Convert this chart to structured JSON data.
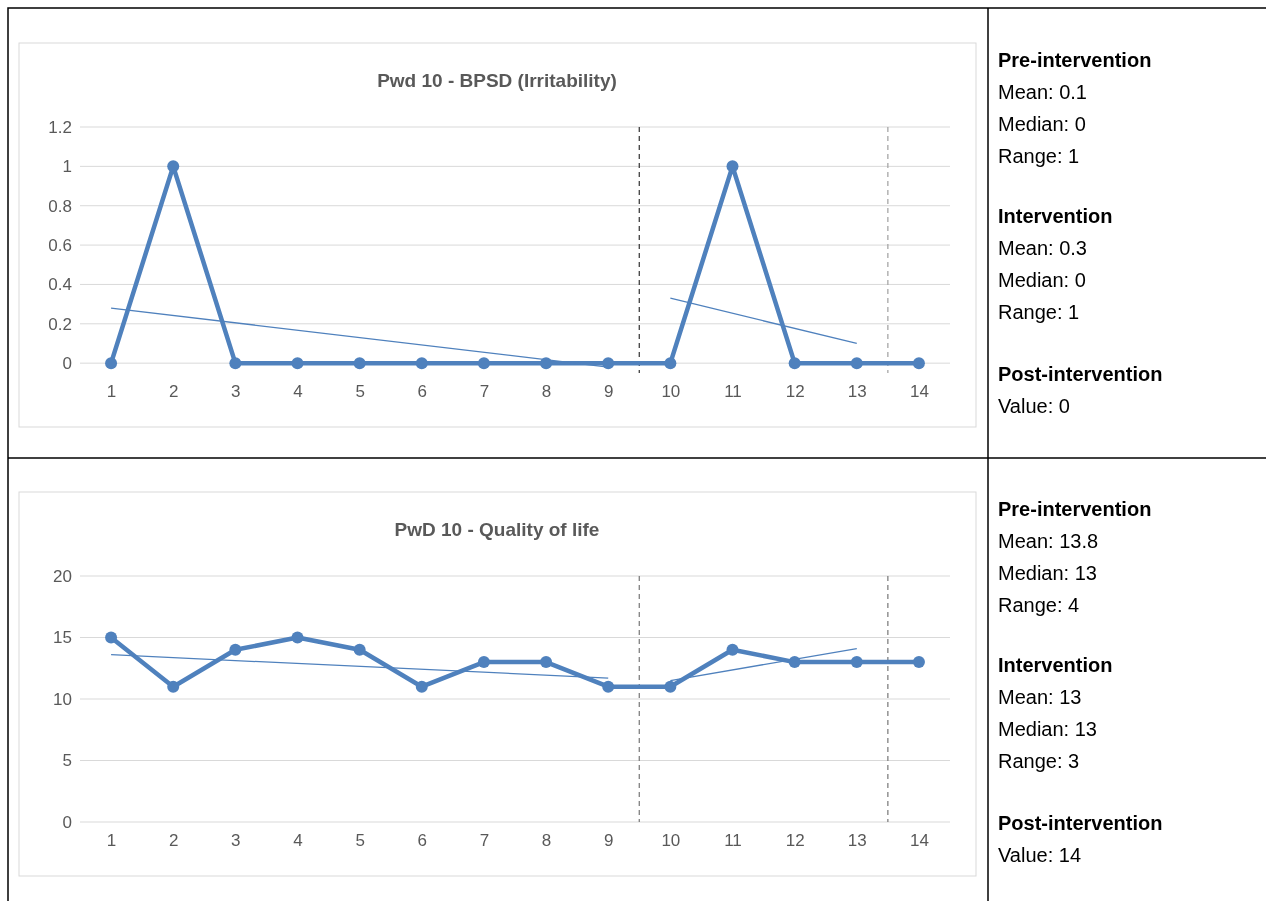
{
  "chart_data": [
    {
      "type": "line",
      "title": "Pwd 10 - BPSD (Irritability)",
      "xlim": [
        0.5,
        14.5
      ],
      "xticks": [
        1,
        2,
        3,
        4,
        5,
        6,
        7,
        8,
        9,
        10,
        11,
        12,
        13,
        14
      ],
      "ylim": [
        -0.05,
        1.2
      ],
      "yticks": [
        0,
        0.2,
        0.4,
        0.6,
        0.8,
        1,
        1.2
      ],
      "grid": "y",
      "marker": "circle",
      "series": [
        {
          "color": "#4f81bd",
          "x": [
            1,
            2,
            3,
            4,
            5,
            6,
            7,
            8,
            9,
            10,
            11,
            12,
            13,
            14
          ],
          "values": [
            0,
            1,
            0,
            0,
            0,
            0,
            0,
            0,
            0,
            0,
            1,
            0,
            0,
            0
          ]
        },
        {
          "color": "#4f81bd",
          "marker": "none",
          "x": [
            1,
            9
          ],
          "values": [
            0.28,
            -0.02
          ]
        },
        {
          "color": "#4f81bd",
          "marker": "none",
          "x": [
            10,
            13
          ],
          "values": [
            0.33,
            0.1
          ]
        }
      ],
      "ref_lines": [
        {
          "axis": "x",
          "value": 9.5,
          "color": "#404040",
          "line_style": "dashed"
        },
        {
          "axis": "x",
          "value": 13.5,
          "color": "#a6a6a6",
          "line_style": "dashed"
        }
      ]
    },
    {
      "type": "other",
      "title": "Pre-intervention",
      "annotations": [
        "Mean: 0.1",
        "Median: 0",
        "Range: 1"
      ]
    },
    {
      "type": "other",
      "title": "Intervention",
      "annotations": [
        "Mean: 0.3",
        "Median: 0",
        "Range: 1"
      ]
    },
    {
      "type": "other",
      "title": "Post-intervention",
      "annotations": [
        "Value: 0"
      ]
    },
    {
      "type": "line",
      "title": "PwD 10 - Quality of life",
      "xlim": [
        0.5,
        14.5
      ],
      "xticks": [
        1,
        2,
        3,
        4,
        5,
        6,
        7,
        8,
        9,
        10,
        11,
        12,
        13,
        14
      ],
      "ylim": [
        0,
        20
      ],
      "yticks": [
        0,
        5,
        10,
        15,
        20
      ],
      "grid": "y",
      "marker": "circle",
      "series": [
        {
          "color": "#4f81bd",
          "x": [
            1,
            2,
            3,
            4,
            5,
            6,
            7,
            8,
            9,
            10,
            11,
            12,
            13,
            14
          ],
          "values": [
            15,
            11,
            14,
            15,
            14,
            11,
            13,
            13,
            11,
            11,
            14,
            13,
            13,
            13
          ]
        },
        {
          "color": "#4f81bd",
          "marker": "none",
          "x": [
            1,
            9
          ],
          "values": [
            13.6,
            11.7
          ]
        },
        {
          "color": "#4f81bd",
          "marker": "none",
          "x": [
            10,
            13
          ],
          "values": [
            11.5,
            14.1
          ]
        }
      ],
      "ref_lines": [
        {
          "axis": "x",
          "value": 9.5,
          "color": "#808080",
          "line_style": "dashed"
        },
        {
          "axis": "x",
          "value": 13.5,
          "color": "#808080",
          "line_style": "dashed"
        }
      ]
    },
    {
      "type": "other",
      "title": "Pre-intervention",
      "annotations": [
        "Mean: 13.8",
        "Median: 13",
        "Range: 4"
      ]
    },
    {
      "type": "other",
      "title": "Intervention",
      "annotations": [
        "Mean: 13",
        "Median: 13",
        "Range: 3"
      ]
    },
    {
      "type": "other",
      "title": "Post-intervention",
      "annotations": [
        "Value: 14"
      ]
    }
  ]
}
